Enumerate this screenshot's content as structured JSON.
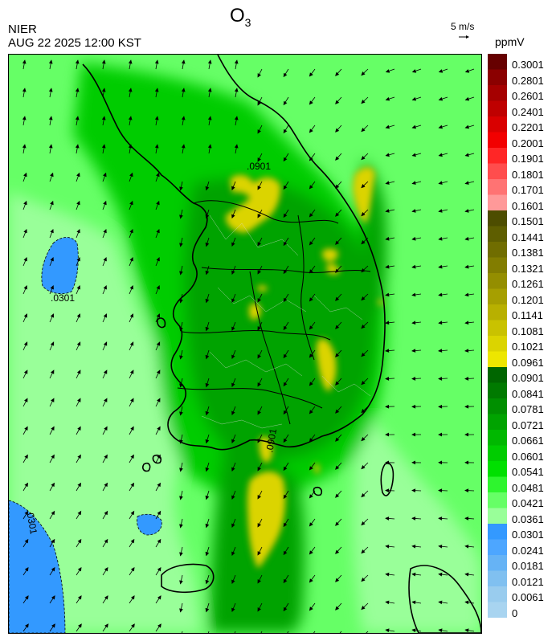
{
  "header": {
    "title_main": "O",
    "title_sub": "3",
    "organization": "NIER",
    "timestamp": "AUG 22 2025 12:00 KST",
    "wind_scale_label": "5 m/s",
    "units_label": "ppmV"
  },
  "legend": {
    "levels": [
      {
        "label": "0.3001",
        "color": "#660000"
      },
      {
        "label": "0.2801",
        "color": "#8b0000"
      },
      {
        "label": "0.2601",
        "color": "#a50000"
      },
      {
        "label": "0.2401",
        "color": "#bf0000"
      },
      {
        "label": "0.2201",
        "color": "#d90000"
      },
      {
        "label": "0.2001",
        "color": "#f20000"
      },
      {
        "label": "0.1901",
        "color": "#ff2626"
      },
      {
        "label": "0.1801",
        "color": "#ff4d4d"
      },
      {
        "label": "0.1701",
        "color": "#ff7373"
      },
      {
        "label": "0.1601",
        "color": "#ff9999"
      },
      {
        "label": "0.1501",
        "color": "#4d4d00"
      },
      {
        "label": "0.1441",
        "color": "#5e5e00"
      },
      {
        "label": "0.1381",
        "color": "#706d00"
      },
      {
        "label": "0.1321",
        "color": "#827d00"
      },
      {
        "label": "0.1261",
        "color": "#948e00"
      },
      {
        "label": "0.1201",
        "color": "#a69f00"
      },
      {
        "label": "0.1141",
        "color": "#b8b000"
      },
      {
        "label": "0.1081",
        "color": "#c9c200"
      },
      {
        "label": "0.1021",
        "color": "#dbd400"
      },
      {
        "label": "0.0961",
        "color": "#ede600"
      },
      {
        "label": "0.0901",
        "color": "#006600"
      },
      {
        "label": "0.0841",
        "color": "#007a00"
      },
      {
        "label": "0.0781",
        "color": "#008f00"
      },
      {
        "label": "0.0721",
        "color": "#00a300"
      },
      {
        "label": "0.0661",
        "color": "#00b800"
      },
      {
        "label": "0.0601",
        "color": "#00cc00"
      },
      {
        "label": "0.0541",
        "color": "#00e000"
      },
      {
        "label": "0.0481",
        "color": "#2ef52e"
      },
      {
        "label": "0.0421",
        "color": "#66ff66"
      },
      {
        "label": "0.0361",
        "color": "#99ff99"
      },
      {
        "label": "0.0301",
        "color": "#3399ff"
      },
      {
        "label": "0.0241",
        "color": "#4da6ff"
      },
      {
        "label": "0.0181",
        "color": "#66b3f5"
      },
      {
        "label": "0.0121",
        "color": "#80c0f0"
      },
      {
        "label": "0.0061",
        "color": "#99ccee"
      },
      {
        "label": "0",
        "color": null
      }
    ],
    "lowest_band_color": "#a8d4f0"
  },
  "map": {
    "contour_labels": [
      {
        "text": ".0901"
      },
      {
        "text": ".0301"
      },
      {
        "text": ".0301"
      },
      {
        "text": ".0901"
      }
    ],
    "colors": {
      "sea_green": "#66ff66",
      "sea_pale": "#99ff99",
      "land_green": "#00cc00",
      "land_dark": "#00a300",
      "hotspot": "#dbd400",
      "blue_low": "#3399ff"
    }
  }
}
